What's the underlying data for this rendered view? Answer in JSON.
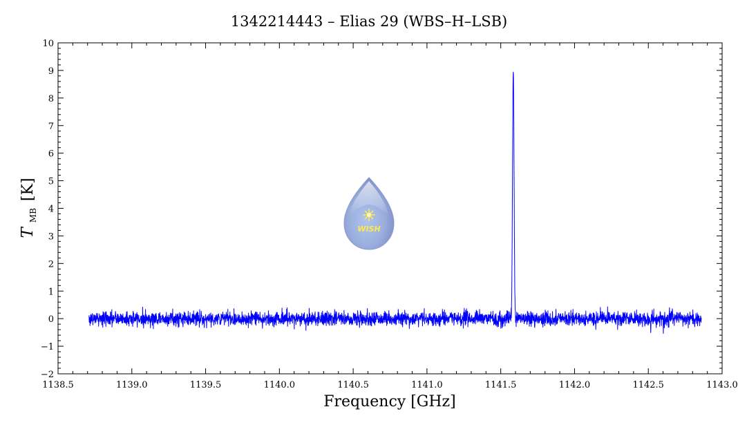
{
  "chart_data": {
    "type": "line",
    "title": "1342214443 – Elias 29 (WBS–H–LSB)",
    "xlabel": "Frequency [GHz]",
    "ylabel": {
      "symbol": "T",
      "subscript": "MB",
      "unit": "[K]"
    },
    "xlim": [
      1138.5,
      1143.0
    ],
    "ylim": [
      -2,
      10
    ],
    "xticks": [
      "1138.5",
      "1139.0",
      "1139.5",
      "1140.0",
      "1140.5",
      "1141.0",
      "1141.5",
      "1142.0",
      "1142.5",
      "1143.0"
    ],
    "yticks": [
      "−2",
      "−1",
      "0",
      "1",
      "2",
      "3",
      "4",
      "5",
      "6",
      "7",
      "8",
      "9",
      "10"
    ],
    "grid": false,
    "series": [
      {
        "color": "#0000ff",
        "x_range": [
          1138.71,
          1142.86
        ],
        "baseline": 0.0,
        "noise_rms_K": 0.13,
        "peak": {
          "x": 1141.585,
          "y": 9.05,
          "fwhm_GHz": 0.012
        }
      }
    ],
    "logo": {
      "text": "WISH"
    }
  }
}
